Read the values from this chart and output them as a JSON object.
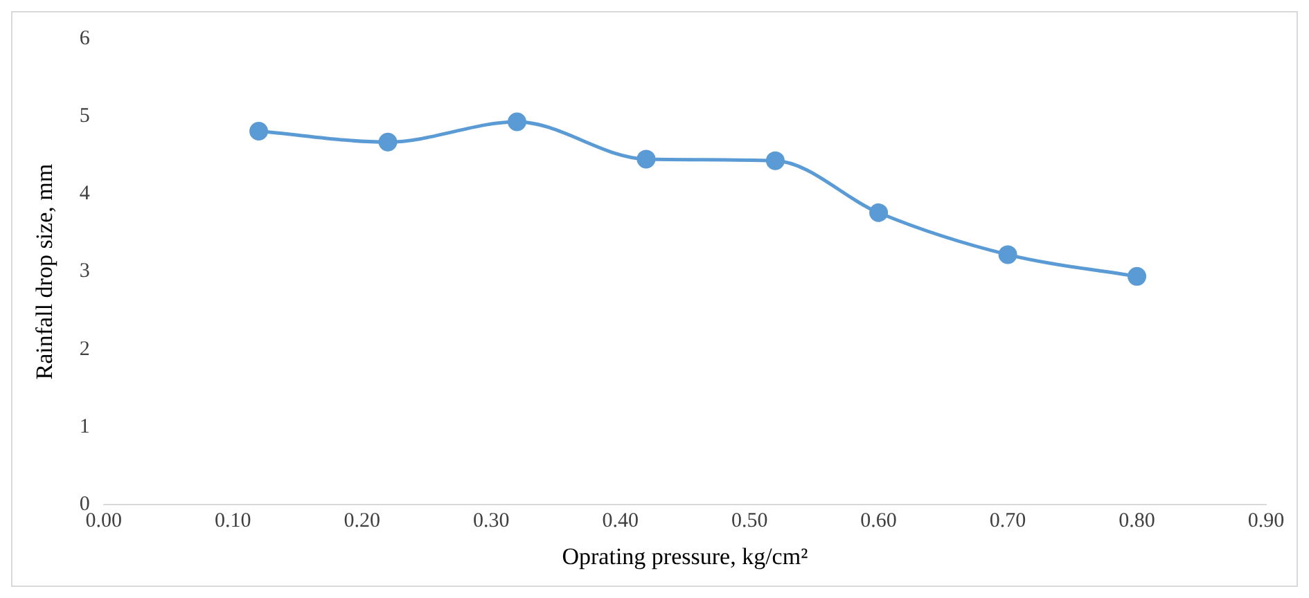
{
  "chart_data": {
    "type": "line",
    "xlabel": "Oprating pressure, kg/cm²",
    "ylabel": "Rainfall drop size, mm",
    "x": [
      0.12,
      0.22,
      0.32,
      0.42,
      0.52,
      0.6,
      0.7,
      0.8
    ],
    "series": [
      {
        "color": "#5b9bd5",
        "values": [
          4.81,
          4.67,
          4.93,
          4.45,
          4.43,
          3.76,
          3.22,
          2.94
        ]
      }
    ],
    "xlim": [
      0,
      0.9
    ],
    "xticks": [
      {
        "value": 0,
        "label": "0.00"
      },
      {
        "value": 0.1,
        "label": "0.10"
      },
      {
        "value": 0.2,
        "label": "0.20"
      },
      {
        "value": 0.3,
        "label": "0.30"
      },
      {
        "value": 0.4,
        "label": "0.40"
      },
      {
        "value": 0.5,
        "label": "0.50"
      },
      {
        "value": 0.6,
        "label": "0.60"
      },
      {
        "value": 0.7,
        "label": "0.70"
      },
      {
        "value": 0.8,
        "label": "0.80"
      },
      {
        "value": 0.9,
        "label": "0.90"
      }
    ],
    "ylim": [
      0,
      6
    ],
    "yticks": [
      0,
      1,
      2,
      3,
      4,
      5,
      6
    ],
    "grid": false,
    "legend": false,
    "marker": "circle",
    "line_style": "solid"
  }
}
